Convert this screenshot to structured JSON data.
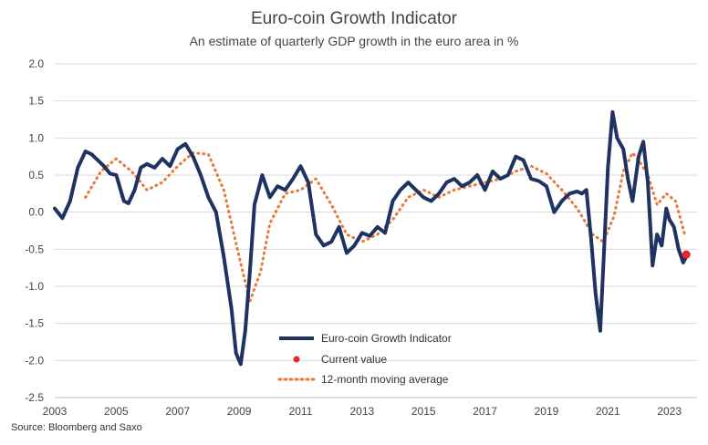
{
  "chart_data": {
    "type": "line",
    "title": "Euro-coin Growth Indicator",
    "subtitle": "An estimate of quarterly GDP growth in the euro area in %",
    "source": "Source: Bloomberg and Saxo",
    "xlabel": "",
    "ylabel": "",
    "xlim": [
      2003,
      2023.9
    ],
    "ylim": [
      -2.5,
      2.0
    ],
    "xticks": [
      "2003",
      "2005",
      "2007",
      "2009",
      "2011",
      "2013",
      "2015",
      "2017",
      "2019",
      "2021",
      "2023"
    ],
    "yticks": [
      "2.0",
      "1.5",
      "1.0",
      "0.5",
      "0.0",
      "-0.5",
      "-1.0",
      "-1.5",
      "-2.0",
      "-2.5"
    ],
    "grid": "horizontal",
    "legend_position": "bottom-center",
    "colors": {
      "indicator": "#1f3362",
      "current": "#e8262b",
      "moving_average": "#e8793a"
    },
    "series": [
      {
        "name": "Euro-coin Growth Indicator",
        "x": [
          2003.0,
          2003.25,
          2003.5,
          2003.75,
          2004.0,
          2004.2,
          2004.4,
          2004.6,
          2004.8,
          2005.0,
          2005.25,
          2005.4,
          2005.6,
          2005.8,
          2006.0,
          2006.25,
          2006.5,
          2006.75,
          2007.0,
          2007.25,
          2007.5,
          2007.75,
          2008.0,
          2008.25,
          2008.5,
          2008.75,
          2008.9,
          2009.05,
          2009.2,
          2009.35,
          2009.5,
          2009.75,
          2010.0,
          2010.25,
          2010.5,
          2010.75,
          2011.0,
          2011.25,
          2011.5,
          2011.75,
          2012.0,
          2012.25,
          2012.5,
          2012.75,
          2013.0,
          2013.25,
          2013.5,
          2013.75,
          2014.0,
          2014.25,
          2014.5,
          2014.75,
          2015.0,
          2015.25,
          2015.5,
          2015.75,
          2016.0,
          2016.25,
          2016.5,
          2016.75,
          2017.0,
          2017.25,
          2017.5,
          2017.75,
          2018.0,
          2018.25,
          2018.5,
          2018.75,
          2019.0,
          2019.25,
          2019.5,
          2019.75,
          2020.0,
          2020.15,
          2020.3,
          2020.45,
          2020.6,
          2020.75,
          2020.9,
          2021.0,
          2021.15,
          2021.3,
          2021.5,
          2021.65,
          2021.8,
          2022.0,
          2022.15,
          2022.3,
          2022.45,
          2022.6,
          2022.75,
          2022.9,
          2023.0,
          2023.15,
          2023.3,
          2023.45,
          2023.55
        ],
        "values": [
          0.05,
          -0.08,
          0.15,
          0.6,
          0.82,
          0.78,
          0.7,
          0.62,
          0.52,
          0.5,
          0.15,
          0.12,
          0.3,
          0.6,
          0.65,
          0.6,
          0.72,
          0.62,
          0.85,
          0.92,
          0.75,
          0.5,
          0.2,
          0.0,
          -0.6,
          -1.3,
          -1.9,
          -2.05,
          -1.6,
          -0.8,
          0.1,
          0.5,
          0.2,
          0.35,
          0.3,
          0.45,
          0.62,
          0.4,
          -0.3,
          -0.45,
          -0.4,
          -0.2,
          -0.55,
          -0.45,
          -0.28,
          -0.32,
          -0.2,
          -0.28,
          0.15,
          0.3,
          0.4,
          0.3,
          0.2,
          0.15,
          0.25,
          0.4,
          0.45,
          0.35,
          0.4,
          0.5,
          0.3,
          0.55,
          0.45,
          0.5,
          0.75,
          0.7,
          0.45,
          0.42,
          0.35,
          0.0,
          0.15,
          0.25,
          0.28,
          0.25,
          0.3,
          -0.35,
          -1.1,
          -1.6,
          -0.3,
          0.6,
          1.35,
          1.0,
          0.85,
          0.45,
          0.15,
          0.75,
          0.95,
          0.4,
          -0.72,
          -0.3,
          -0.45,
          0.05,
          -0.1,
          -0.2,
          -0.5,
          -0.68,
          -0.6
        ]
      },
      {
        "name": "Current value",
        "x": [
          2023.55
        ],
        "values": [
          -0.57
        ]
      },
      {
        "name": "12-month moving average",
        "x": [
          2004.0,
          2004.5,
          2005.0,
          2005.5,
          2006.0,
          2006.5,
          2007.0,
          2007.5,
          2008.0,
          2008.5,
          2009.0,
          2009.35,
          2009.7,
          2010.0,
          2010.5,
          2011.0,
          2011.5,
          2012.0,
          2012.5,
          2013.0,
          2013.5,
          2014.0,
          2014.5,
          2015.0,
          2015.5,
          2016.0,
          2016.5,
          2017.0,
          2017.5,
          2018.0,
          2018.5,
          2019.0,
          2019.5,
          2020.0,
          2020.5,
          2020.85,
          2021.2,
          2021.5,
          2021.8,
          2022.0,
          2022.3,
          2022.6,
          2022.9,
          2023.2,
          2023.5
        ],
        "values": [
          0.2,
          0.55,
          0.72,
          0.55,
          0.3,
          0.4,
          0.62,
          0.8,
          0.78,
          0.3,
          -0.6,
          -1.2,
          -0.8,
          -0.15,
          0.25,
          0.3,
          0.45,
          0.1,
          -0.3,
          -0.4,
          -0.3,
          -0.1,
          0.2,
          0.3,
          0.2,
          0.3,
          0.35,
          0.4,
          0.45,
          0.55,
          0.62,
          0.52,
          0.3,
          0.05,
          -0.3,
          -0.4,
          -0.05,
          0.55,
          0.8,
          0.7,
          0.5,
          0.1,
          0.25,
          0.15,
          -0.3
        ]
      }
    ],
    "legend": [
      "Euro-coin Growth Indicator",
      "Current value",
      "12-month moving average"
    ]
  }
}
